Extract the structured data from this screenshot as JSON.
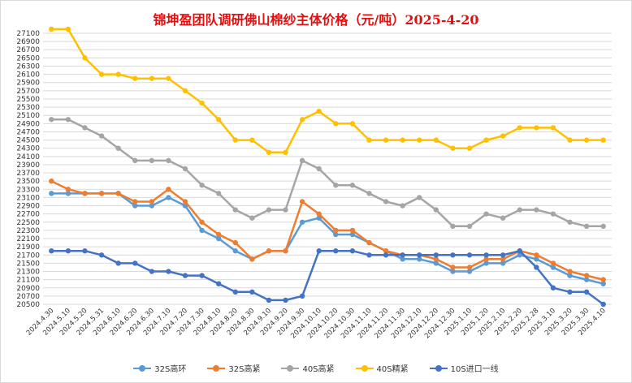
{
  "chart_data": {
    "type": "line",
    "title": "锦坤盈团队调研佛山棉纱主体价格（元/吨）2025-4-20",
    "xlabel": "",
    "ylabel": "",
    "ylim": [
      20500,
      27100
    ],
    "ytick_step": 200,
    "grid": true,
    "legend": "bottom",
    "categories": [
      "2024.4.30",
      "2024.5.10",
      "2024.5.20",
      "2024.5.31",
      "2024.6.10",
      "2024.6.20",
      "2024.6.30",
      "2024.7.10",
      "2024.7.20",
      "2024.7.30",
      "2024.8.10",
      "2024.8.20",
      "2024.8.30",
      "2024.9.10",
      "2024.9.20",
      "2024.9.30",
      "2024.10.10",
      "2024.10.20",
      "2024.10.30",
      "2024.11.10",
      "2024.11.20",
      "2024.11.30",
      "2024.12.10",
      "2024.12.20",
      "2024.12.30",
      "2025.1.10",
      "2025.1.20",
      "2025.2.10",
      "2025.2.20",
      "2025.2.28",
      "2025.3.10",
      "2025.3.20",
      "2025.3.30",
      "2025.4.10"
    ],
    "series": [
      {
        "name": "32S高环",
        "color": "#5b9bd5",
        "values": [
          23200,
          23200,
          23200,
          23200,
          23200,
          22900,
          22900,
          23100,
          22900,
          22300,
          22100,
          21800,
          21600,
          21800,
          21800,
          22500,
          22600,
          22200,
          22200,
          22000,
          21800,
          21600,
          21600,
          21500,
          21300,
          21300,
          21500,
          21500,
          21700,
          21600,
          21400,
          21200,
          21100,
          21000
        ]
      },
      {
        "name": "32S高紧",
        "color": "#ed7d31",
        "values": [
          23500,
          23300,
          23200,
          23200,
          23200,
          23000,
          23000,
          23300,
          23000,
          22500,
          22200,
          22000,
          21600,
          21800,
          21800,
          23000,
          22700,
          22300,
          22300,
          22000,
          21800,
          21700,
          21700,
          21600,
          21400,
          21400,
          21600,
          21600,
          21800,
          21700,
          21500,
          21300,
          21200,
          21100
        ]
      },
      {
        "name": "40S高紧",
        "color": "#a5a5a5",
        "values": [
          25000,
          25000,
          24800,
          24600,
          24300,
          24000,
          24000,
          24000,
          23800,
          23400,
          23200,
          22800,
          22600,
          22800,
          22800,
          24000,
          23800,
          23400,
          23400,
          23200,
          23000,
          22900,
          23100,
          22800,
          22400,
          22400,
          22700,
          22600,
          22800,
          22800,
          22700,
          22500,
          22400,
          22400
        ]
      },
      {
        "name": "40S精紧",
        "color": "#ffc000",
        "values": [
          27200,
          27200,
          26500,
          26100,
          26100,
          26000,
          26000,
          26000,
          25700,
          25400,
          25000,
          24500,
          24500,
          24200,
          24200,
          25000,
          25200,
          24900,
          24900,
          24500,
          24500,
          24500,
          24500,
          24500,
          24300,
          24300,
          24500,
          24600,
          24800,
          24800,
          24800,
          24500,
          24500,
          24500
        ]
      },
      {
        "name": "10S进口一线",
        "color": "#4472c4",
        "values": [
          21800,
          21800,
          21800,
          21700,
          21500,
          21500,
          21300,
          21300,
          21200,
          21200,
          21000,
          20800,
          20800,
          20600,
          20600,
          20700,
          21800,
          21800,
          21800,
          21700,
          21700,
          21700,
          21700,
          21700,
          21700,
          21700,
          21700,
          21700,
          21800,
          21400,
          20900,
          20800,
          20800,
          20500
        ]
      }
    ]
  }
}
